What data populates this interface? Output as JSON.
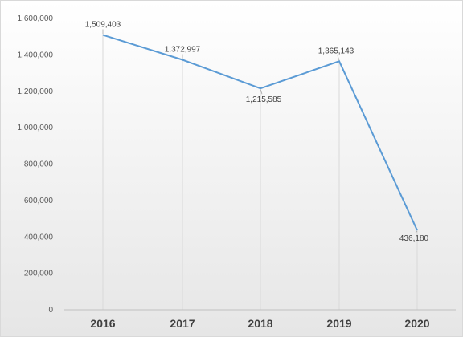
{
  "chart_data": {
    "type": "line",
    "title": "",
    "xlabel": "",
    "ylabel": "",
    "categories": [
      "2016",
      "2017",
      "2018",
      "2019",
      "2020"
    ],
    "series": [
      {
        "values": [
          1509403,
          1372997,
          1215585,
          1365143,
          436180
        ],
        "labels": [
          "1,509,403",
          "1,372,997",
          "1,215,585",
          "1,365,143",
          "436,180"
        ],
        "color": "#5b9bd5"
      }
    ],
    "ylim": [
      0,
      1600000
    ],
    "yticks": [
      0,
      200000,
      400000,
      600000,
      800000,
      1000000,
      1200000,
      1400000,
      1600000
    ],
    "ytick_labels": [
      "0",
      "200,000",
      "400,000",
      "600,000",
      "800,000",
      "1,000,000",
      "1,200,000",
      "1,400,000",
      "1,600,000"
    ],
    "grid": "vertical drop lines only",
    "legend": "none",
    "background_gradient": [
      "#ffffff",
      "#e6e6e6"
    ],
    "axis_color": "#bfbfbf"
  }
}
